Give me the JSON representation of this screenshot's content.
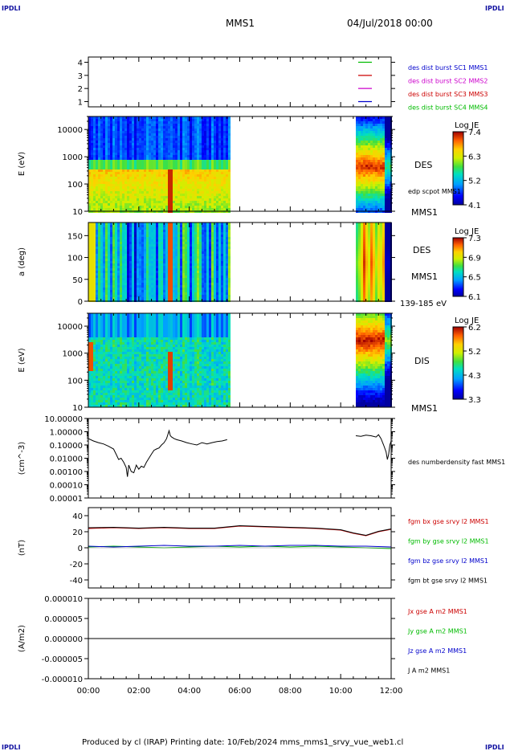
{
  "header": {
    "logo_left": "IPDLI",
    "logo_right": "IPDLI",
    "mission": "MMS1",
    "date": "04/Jul/2018 00:00"
  },
  "footer": {
    "text": "Produced by cl (IRAP)    Printing date: 10/Feb/2024    mms_mms1_srvy_vue_web1.cl",
    "logo_left": "IPDLI",
    "logo_right": "IPDLI"
  },
  "time_axis": {
    "ticks": [
      "00:00",
      "02:00",
      "04:00",
      "06:00",
      "08:00",
      "10:00",
      "12:00"
    ],
    "range_hours": [
      0,
      12
    ]
  },
  "colors": {
    "gap": "#ffffff",
    "frame": "#000000"
  },
  "chart_data": [
    {
      "type": "line",
      "name": "spacecraft-ids",
      "yticks": [
        "1",
        "2",
        "3",
        "4"
      ],
      "ylim": [
        0.6,
        4.4
      ],
      "legend": [
        {
          "label": "des dist burst SC1 MMS1",
          "color": "#0000cc"
        },
        {
          "label": "des dist burst SC2 MMS2",
          "color": "#cc00cc"
        },
        {
          "label": "des dist burst SC3 MMS3",
          "color": "#cc0000"
        },
        {
          "label": "des dist burst SC4 MMS4",
          "color": "#00bb00"
        }
      ],
      "markers": [
        {
          "y": 4,
          "color": "#00bb00"
        },
        {
          "y": 3,
          "color": "#cc0000"
        },
        {
          "y": 2,
          "color": "#cc00cc"
        },
        {
          "y": 1,
          "color": "#0000cc"
        }
      ]
    },
    {
      "type": "heatmap",
      "name": "des-energy",
      "ylabel": "E (eV)",
      "log_y": true,
      "ylim": [
        10,
        30000
      ],
      "yticks": [
        "10",
        "100",
        "1000",
        "10000"
      ],
      "right_labels": [
        "DES",
        "edp scpot MMS1",
        "MMS1"
      ],
      "colorbar": {
        "title": "Log JE",
        "ticks": [
          "7.4",
          "6.3",
          "5.2",
          "4.1"
        ],
        "range": [
          4.1,
          7.4
        ]
      },
      "coverage_hours": [
        [
          0,
          5.55
        ],
        [
          10.55,
          12
        ]
      ],
      "gap_hours": [
        5.55,
        10.55
      ]
    },
    {
      "type": "heatmap",
      "name": "des-pitch-angle",
      "ylabel": "a (deg)",
      "ylim": [
        0,
        180
      ],
      "yticks": [
        "0",
        "50",
        "100",
        "150"
      ],
      "right_labels": [
        "DES",
        "MMS1",
        "139-185 eV"
      ],
      "colorbar": {
        "title": "Log JE",
        "ticks": [
          "7.3",
          "6.9",
          "6.5",
          "6.1"
        ],
        "range": [
          6.1,
          7.3
        ]
      },
      "coverage_hours": [
        [
          0,
          5.55
        ],
        [
          10.55,
          12
        ]
      ],
      "gap_hours": [
        5.55,
        10.55
      ]
    },
    {
      "type": "heatmap",
      "name": "dis-energy",
      "ylabel": "E (eV)",
      "log_y": true,
      "ylim": [
        10,
        30000
      ],
      "yticks": [
        "10",
        "100",
        "1000",
        "10000"
      ],
      "right_labels": [
        "DIS",
        "MMS1"
      ],
      "colorbar": {
        "title": "Log JE",
        "ticks": [
          "6.2",
          "5.2",
          "4.3",
          "3.3"
        ],
        "range": [
          3.3,
          6.2
        ]
      },
      "coverage_hours": [
        [
          0,
          5.55
        ],
        [
          10.55,
          12
        ]
      ],
      "gap_hours": [
        5.55,
        10.55
      ]
    },
    {
      "type": "line",
      "name": "density",
      "ylabel": "(cm^-3)",
      "log_y": true,
      "ylim": [
        1e-05,
        10
      ],
      "yticks": [
        "10.00000",
        "1.00000",
        "0.10000",
        "0.01000",
        "0.00100",
        "0.00010",
        "0.00001"
      ],
      "right_labels": [
        "des numberdensity fast MMS1"
      ],
      "series": [
        {
          "name": "des numberdensity fast MMS1",
          "color": "#000000",
          "x": [
            0.0,
            0.2,
            0.4,
            0.6,
            0.8,
            1.0,
            1.1,
            1.2,
            1.3,
            1.4,
            1.5,
            1.55,
            1.6,
            1.7,
            1.8,
            1.9,
            2.0,
            2.1,
            2.2,
            2.3,
            2.4,
            2.5,
            2.6,
            2.7,
            2.8,
            2.9,
            3.0,
            3.1,
            3.2,
            3.25,
            3.3,
            3.4,
            3.5,
            3.7,
            3.9,
            4.1,
            4.3,
            4.5,
            4.7,
            4.9,
            5.1,
            5.3,
            5.5
          ],
          "y": [
            0.3,
            0.2,
            0.15,
            0.12,
            0.08,
            0.05,
            0.02,
            0.008,
            0.01,
            0.005,
            0.002,
            0.0004,
            0.003,
            0.001,
            0.0008,
            0.003,
            0.0015,
            0.0025,
            0.002,
            0.005,
            0.01,
            0.02,
            0.04,
            0.05,
            0.06,
            0.1,
            0.15,
            0.3,
            1.2,
            0.5,
            0.4,
            0.3,
            0.25,
            0.2,
            0.15,
            0.12,
            0.1,
            0.15,
            0.12,
            0.15,
            0.18,
            0.2,
            0.25
          ]
        },
        {
          "name": "des numberdensity fast MMS1 (late)",
          "color": "#000000",
          "x": [
            10.6,
            10.8,
            11.0,
            11.2,
            11.4,
            11.5,
            11.6,
            11.7,
            11.8,
            11.85,
            11.9,
            11.95,
            12.0
          ],
          "y": [
            0.5,
            0.45,
            0.55,
            0.5,
            0.4,
            0.6,
            0.3,
            0.1,
            0.03,
            0.008,
            0.02,
            0.1,
            0.2
          ]
        }
      ]
    },
    {
      "type": "line",
      "name": "magnetic-field",
      "ylabel": "(nT)",
      "ylim": [
        -50,
        50
      ],
      "yticks": [
        "40",
        "20",
        "0",
        "-20",
        "-40"
      ],
      "series": [
        {
          "name": "fgm bx gse srvy l2 MMS1",
          "color": "#cc0000",
          "x": [
            0,
            1,
            2,
            3,
            4,
            5,
            6,
            7,
            8,
            9,
            10,
            10.5,
            11,
            11.5,
            12
          ],
          "y": [
            24,
            25,
            24,
            25,
            24,
            24,
            27,
            26,
            25,
            24,
            22,
            18,
            15,
            20,
            23
          ]
        },
        {
          "name": "fgm by gse srvy l2 MMS1",
          "color": "#00bb00",
          "x": [
            0,
            1,
            2,
            3,
            4,
            5,
            6,
            7,
            8,
            9,
            10,
            11,
            12
          ],
          "y": [
            1,
            2,
            1,
            0,
            1,
            2,
            1,
            2,
            1,
            2,
            1,
            0,
            -1
          ]
        },
        {
          "name": "fgm bz gse srvy l2 MMS1",
          "color": "#0000cc",
          "x": [
            0,
            1,
            2,
            3,
            4,
            5,
            6,
            7,
            8,
            9,
            10,
            11,
            12
          ],
          "y": [
            2,
            1,
            2,
            3,
            2,
            2,
            3,
            2,
            3,
            3,
            2,
            2,
            1
          ]
        },
        {
          "name": "fgm bt gse srvy l2 MMS1",
          "color": "#000000",
          "x": [
            0,
            1,
            2,
            3,
            4,
            5,
            6,
            7,
            8,
            9,
            10,
            10.5,
            11,
            11.5,
            12
          ],
          "y": [
            25,
            25.5,
            24.5,
            25.5,
            24.5,
            24.5,
            27.5,
            26.5,
            25.5,
            24.5,
            22.5,
            18.5,
            15.5,
            20.5,
            23.5
          ]
        }
      ]
    },
    {
      "type": "line",
      "name": "current-density",
      "ylabel": "(A/m2)",
      "ylim": [
        -1e-05,
        1e-05
      ],
      "yticks": [
        "0.000010",
        "0.000005",
        "0.000000",
        "-0.000005",
        "-0.000010"
      ],
      "series": [
        {
          "name": "Jx gse A m2 MMS1",
          "color": "#cc0000",
          "x": [
            0,
            12
          ],
          "y": [
            0,
            0
          ]
        },
        {
          "name": "Jy gse A m2 MMS1",
          "color": "#00bb00",
          "x": [
            0,
            12
          ],
          "y": [
            0,
            0
          ]
        },
        {
          "name": "Jz gse A m2 MMS1",
          "color": "#0000cc",
          "x": [
            0,
            12
          ],
          "y": [
            0,
            0
          ]
        },
        {
          "name": "J A m2 MMS1",
          "color": "#000000",
          "x": [
            0,
            12
          ],
          "y": [
            0,
            0
          ]
        }
      ]
    }
  ]
}
